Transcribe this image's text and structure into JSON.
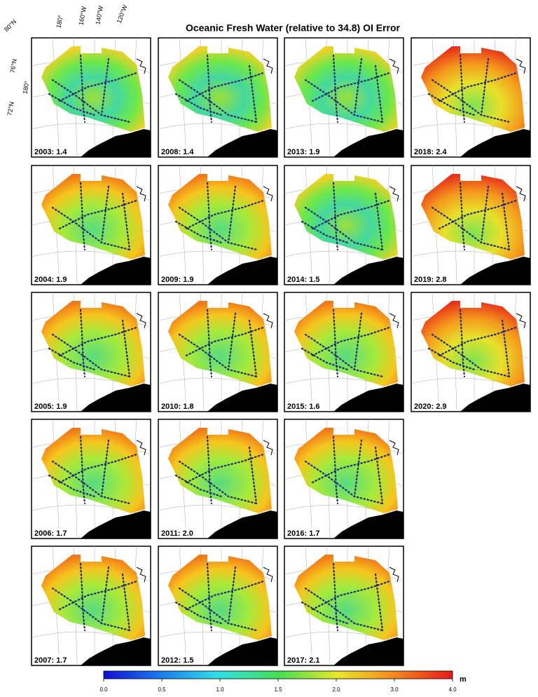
{
  "title": "Oceanic Fresh Water (relative to 34.8) OI Error",
  "graticule_labels": [
    "80°N",
    "180°",
    "160°W",
    "140°W",
    "120°W",
    "76°N",
    "180°",
    "72°N"
  ],
  "panels": [
    {
      "label": "2003: 1.4"
    },
    {
      "label": "2004: 1.9"
    },
    {
      "label": "2005: 1.9"
    },
    {
      "label": "2006: 1.7"
    },
    {
      "label": "2007: 1.7"
    },
    {
      "label": "2008: 1.4"
    },
    {
      "label": "2009: 1.9"
    },
    {
      "label": "2010: 1.8"
    },
    {
      "label": "2011: 2.0"
    },
    {
      "label": "2012: 1.5"
    },
    {
      "label": "2013: 1.9"
    },
    {
      "label": "2014: 1.5"
    },
    {
      "label": "2015: 1.6"
    },
    {
      "label": "2016: 1.7"
    },
    {
      "label": "2017: 2.1"
    },
    {
      "label": "2018: 2.4"
    },
    {
      "label": "2019: 2.8"
    },
    {
      "label": "2020: 2.9"
    }
  ],
  "colorbar": {
    "unit": "m",
    "ticks": [
      {
        "value": 0,
        "label": "0.0"
      },
      {
        "value": 0.5,
        "label": "0.5"
      },
      {
        "value": 1,
        "label": "1.0"
      },
      {
        "value": 1.5,
        "label": "1.5"
      },
      {
        "value": 2,
        "label": "2.0"
      },
      {
        "value": 3,
        "label": "3.0"
      },
      {
        "value": 4,
        "label": "4.0"
      }
    ]
  }
}
